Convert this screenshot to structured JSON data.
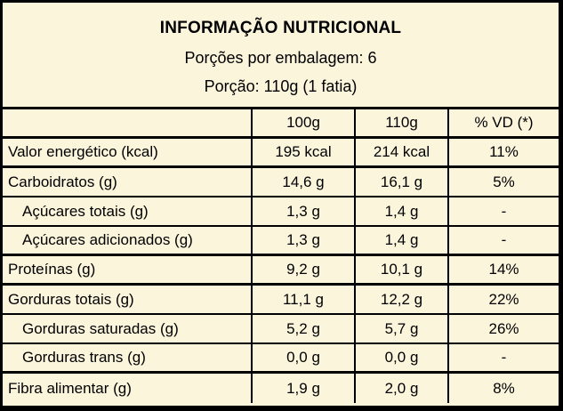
{
  "label_header": {
    "title": "INFORMAÇÃO NUTRICIONAL",
    "servings_per_package": "Porções por embalagem: 6",
    "portion": "Porção: 110g (1 fatia)"
  },
  "table": {
    "columns": [
      "",
      "100g",
      "110g",
      "% VD (*)"
    ],
    "rows": [
      {
        "label": "Valor energético (kcal)",
        "per_100g": "195 kcal",
        "per_portion": "214 kcal",
        "vd_percent": "11%"
      },
      {
        "label": "Carboidratos (g)",
        "per_100g": "14,6 g",
        "per_portion": "16,1 g",
        "vd_percent": "5%"
      },
      {
        "label": "Açúcares totais (g)",
        "per_100g": "1,3 g",
        "per_portion": "1,4 g",
        "vd_percent": "-"
      },
      {
        "label": "Açúcares adicionados (g)",
        "per_100g": "1,3 g",
        "per_portion": "1,4 g",
        "vd_percent": "-"
      },
      {
        "label": "Proteínas (g)",
        "per_100g": "9,2 g",
        "per_portion": "10,1 g",
        "vd_percent": "14%"
      },
      {
        "label": "Gorduras totais (g)",
        "per_100g": "11,1 g",
        "per_portion": "12,2 g",
        "vd_percent": "22%"
      },
      {
        "label": "Gorduras saturadas (g)",
        "per_100g": "5,2 g",
        "per_portion": "5,7 g",
        "vd_percent": "26%"
      },
      {
        "label": "Gorduras trans (g)",
        "per_100g": "0,0 g",
        "per_portion": "0,0 g",
        "vd_percent": "-"
      },
      {
        "label": "Fibra alimentar (g)",
        "per_100g": "1,9 g",
        "per_portion": "2,0 g",
        "vd_percent": "8%"
      }
    ]
  },
  "colors": {
    "background": "#FBF5DC",
    "border": "#000000",
    "text": "#000000"
  }
}
